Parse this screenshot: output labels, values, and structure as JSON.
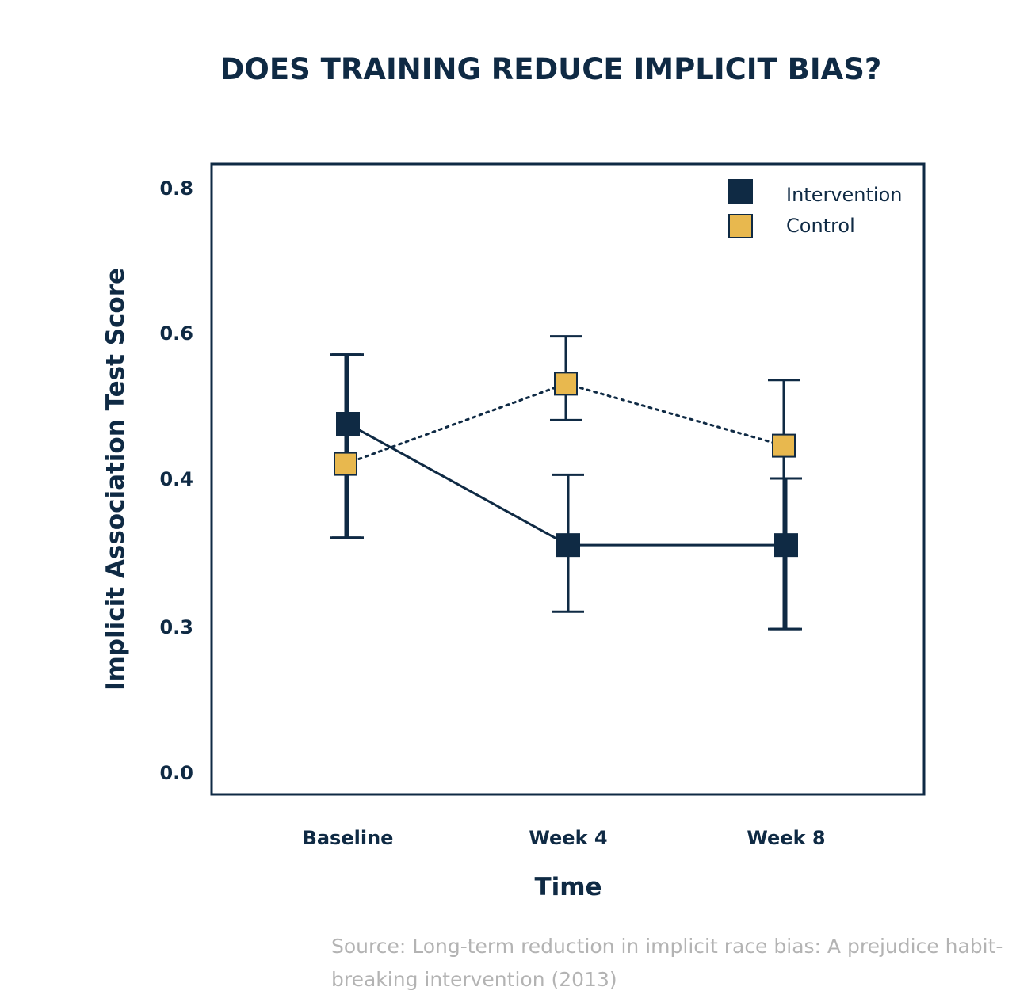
{
  "chart_data": {
    "type": "line",
    "title": "DOES TRAINING REDUCE IMPLICIT BIAS?",
    "xlabel": "Time",
    "ylabel": "Implicit Association Test Score",
    "categories": [
      "Baseline",
      "Week 4",
      "Week 8"
    ],
    "y_ticks": [
      {
        "value": 0.0,
        "label": "0.0"
      },
      {
        "value": 0.3,
        "label": "0.3"
      },
      {
        "value": 0.4,
        "label": "0.4"
      },
      {
        "value": 0.6,
        "label": "0.6"
      },
      {
        "value": 0.8,
        "label": "0.8"
      }
    ],
    "series": [
      {
        "name": "Intervention",
        "color": "#0f2a44",
        "line_style": "solid",
        "values": [
          0.475,
          0.355,
          0.355
        ],
        "error_low": [
          0.36,
          0.31,
          0.295
        ],
        "error_high": [
          0.57,
          0.405,
          0.4
        ]
      },
      {
        "name": "Control",
        "color": "#e8b84e",
        "line_style": "dotted",
        "values": [
          0.42,
          0.53,
          0.445
        ],
        "error_low": [
          0.36,
          0.48,
          0.295
        ],
        "error_high": [
          0.57,
          0.595,
          0.535
        ]
      }
    ],
    "legend": "top-right",
    "grid": false
  },
  "source_text": "Source: Long-term reduction in implicit race bias: A prejudice habit-breaking intervention (2013)"
}
